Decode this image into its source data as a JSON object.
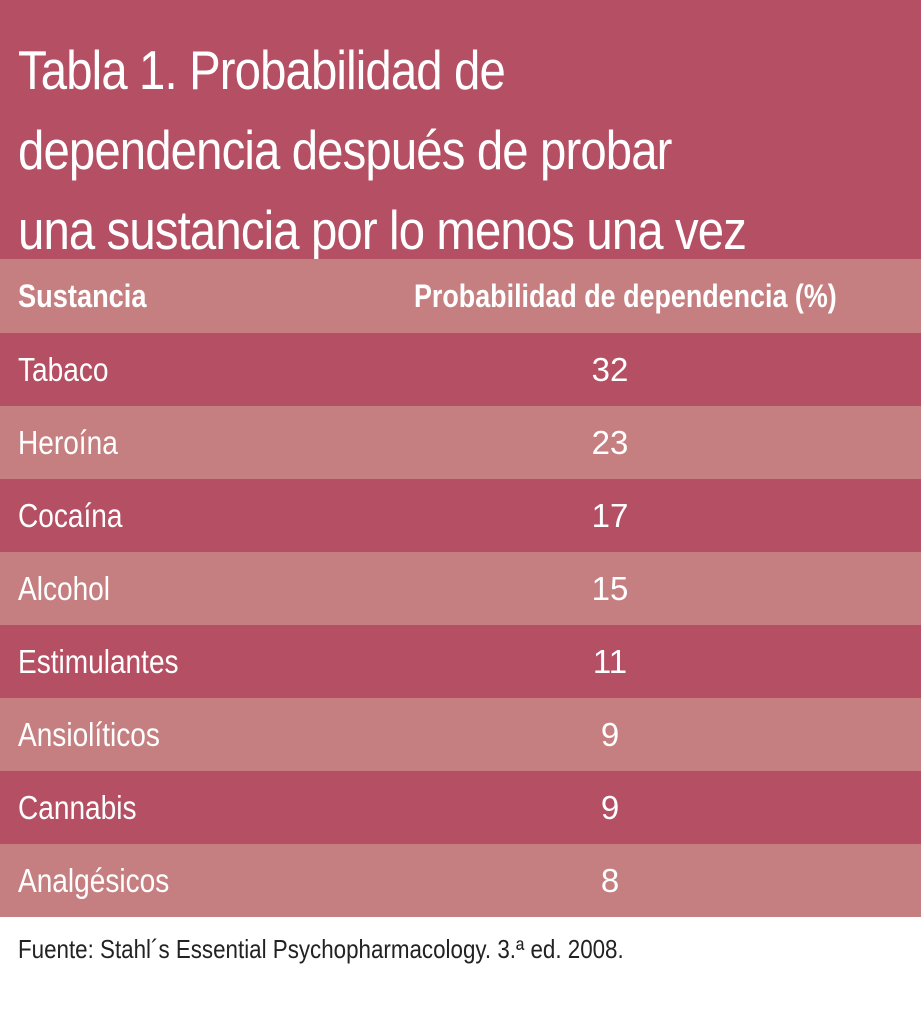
{
  "title": {
    "lines": [
      "Tabla 1. Probabilidad de",
      "dependencia  después de probar",
      "una sustancia por lo menos una vez"
    ]
  },
  "table": {
    "headers": {
      "substance": "Sustancia",
      "probability": "Probabilidad de dependencia (%)"
    },
    "rows": [
      {
        "substance": "Tabaco",
        "probability": "32"
      },
      {
        "substance": "Heroína",
        "probability": "23"
      },
      {
        "substance": "Cocaína",
        "probability": "17"
      },
      {
        "substance": "Alcohol",
        "probability": "15"
      },
      {
        "substance": "Estimulantes",
        "probability": "11"
      },
      {
        "substance": "Ansiolíticos",
        "probability": "9"
      },
      {
        "substance": "Cannabis",
        "probability": "9"
      },
      {
        "substance": "Analgésicos",
        "probability": "8"
      }
    ]
  },
  "source": "Fuente: Stahl´s Essential Psychopharmacology. 3.ª ed. 2008.",
  "colors": {
    "dark_row": "#b54f63",
    "light_row": "#c67f81",
    "text": "#ffffff"
  }
}
